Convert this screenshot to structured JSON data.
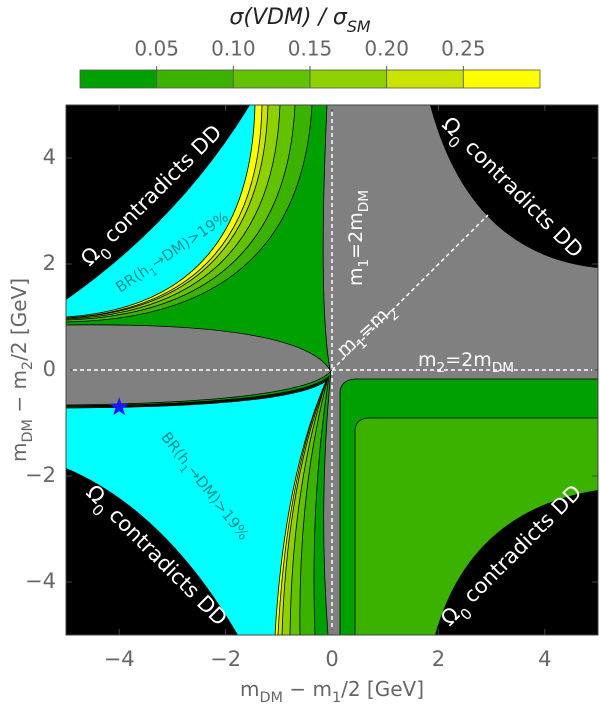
{
  "chart_data": {
    "type": "contour",
    "title": [
      "σ(VDM) / σ",
      "SM"
    ],
    "x_label": [
      "m",
      "DM",
      " − m",
      "1",
      "/2 [GeV]"
    ],
    "y_label": [
      "m",
      "DM",
      " − m",
      "2",
      "/2 [GeV]"
    ],
    "xlim": [
      -5,
      5
    ],
    "ylim": [
      -5,
      5
    ],
    "xticks": [
      {
        "value": -4,
        "label": "−4"
      },
      {
        "value": -2,
        "label": "−2"
      },
      0,
      2,
      4
    ],
    "yticks": [
      {
        "value": -4,
        "label": "−4"
      },
      {
        "value": -2,
        "label": "−2"
      },
      0,
      2,
      4
    ],
    "colorbar": {
      "lim": [
        0,
        0.3
      ],
      "ticks": [
        0.05,
        {
          "value": 0.1,
          "label": "0.10"
        },
        0.15,
        {
          "value": 0.2,
          "label": "0.20"
        },
        0.25
      ],
      "levels": [
        0,
        0.05,
        0.1,
        0.15,
        0.2,
        0.25,
        0.3
      ],
      "colors": [
        "#00a000",
        "#3cb200",
        "#62c200",
        "#8fd000",
        "#c8e400",
        "#ffff00"
      ]
    },
    "region_colors": {
      "br": "#00ffff",
      "omega": "#000000",
      "kinematic": "#808080"
    },
    "annotations": [
      {
        "parts": [
          "Ω",
          "0",
          " contradicts DD"
        ],
        "color": "#ffffff"
      },
      {
        "parts": [
          "Ω",
          "0",
          " contradicts DD"
        ],
        "color": "#ffffff"
      },
      {
        "parts": [
          "Ω",
          "0",
          " contradicts DD"
        ],
        "color": "#ffffff"
      },
      {
        "parts": [
          "Ω",
          "0",
          " contradicts DD"
        ],
        "color": "#ffffff"
      },
      {
        "parts": [
          "BR(h",
          "1",
          "→DM)>19%"
        ],
        "color": "#0a8f8f"
      },
      {
        "parts": [
          "BR(h",
          "1",
          "→DM)>19%"
        ],
        "color": "#0a8f8f"
      },
      {
        "parts": [
          "m",
          "1",
          "=2m",
          "DM"
        ],
        "color": "#ffffff"
      },
      {
        "parts": [
          "m",
          "1",
          "=m",
          "2"
        ],
        "color": "#ffffff"
      },
      {
        "parts": [
          "m",
          "2",
          "=2m",
          "DM"
        ],
        "color": "#ffffff"
      }
    ],
    "marker": {
      "x": -4,
      "y": -0.7,
      "color": "#1a1aff"
    }
  }
}
